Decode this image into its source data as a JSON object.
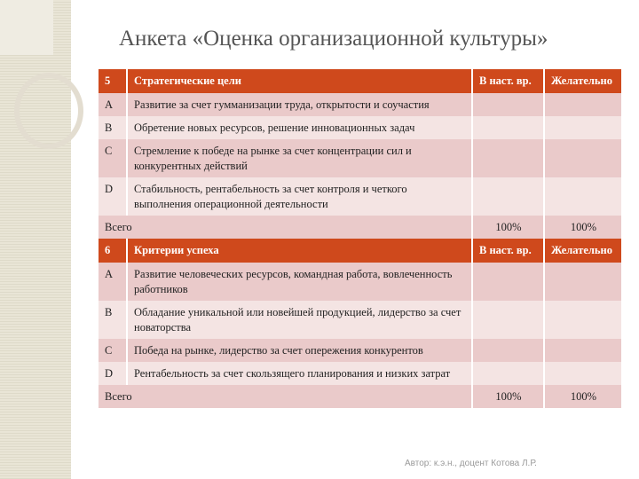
{
  "title": "Анкета «Оценка организационной культуры»",
  "sections": [
    {
      "number": "5",
      "heading": "Стратегические цели",
      "col_current": "В наст. вр.",
      "col_desired": "Желательно",
      "rows": [
        {
          "letter": "A",
          "text": "Развитие за счет гумманизации труда, открытости и соучастия"
        },
        {
          "letter": "B",
          "text": "Обретение новых ресурсов, решение инновационных задач"
        },
        {
          "letter": "C",
          "text": "Стремление к победе на рынке за счет концентрации сил и конкурентных действий"
        },
        {
          "letter": "D",
          "text": "Стабильность, рентабельность за счет контроля и четкого выполнения операционной деятельности"
        }
      ],
      "total_label": "Всего",
      "total_current": "100%",
      "total_desired": "100%"
    },
    {
      "number": "6",
      "heading": "Критерии успеха",
      "col_current": "В наст. вр.",
      "col_desired": "Желательно",
      "rows": [
        {
          "letter": "A",
          "text": "Развитие человеческих ресурсов, командная работа, вовлеченность работников"
        },
        {
          "letter": "B",
          "text": "Обладание уникальной или новейшей продукцией, лидерство за счет новаторства"
        },
        {
          "letter": "C",
          "text": "Победа на рынке, лидерство за счет опережения конкурентов"
        },
        {
          "letter": "D",
          "text": "Рентабельность за счет скользящего планирования и низких затрат"
        }
      ],
      "total_label": "Всего",
      "total_current": "100%",
      "total_desired": "100%"
    }
  ],
  "footer": "Автор: к.э.н., доцент Котова Л.Р.",
  "colors": {
    "header": "#cf491c",
    "row_dark": "#eacaca",
    "row_light": "#f4e4e3"
  }
}
